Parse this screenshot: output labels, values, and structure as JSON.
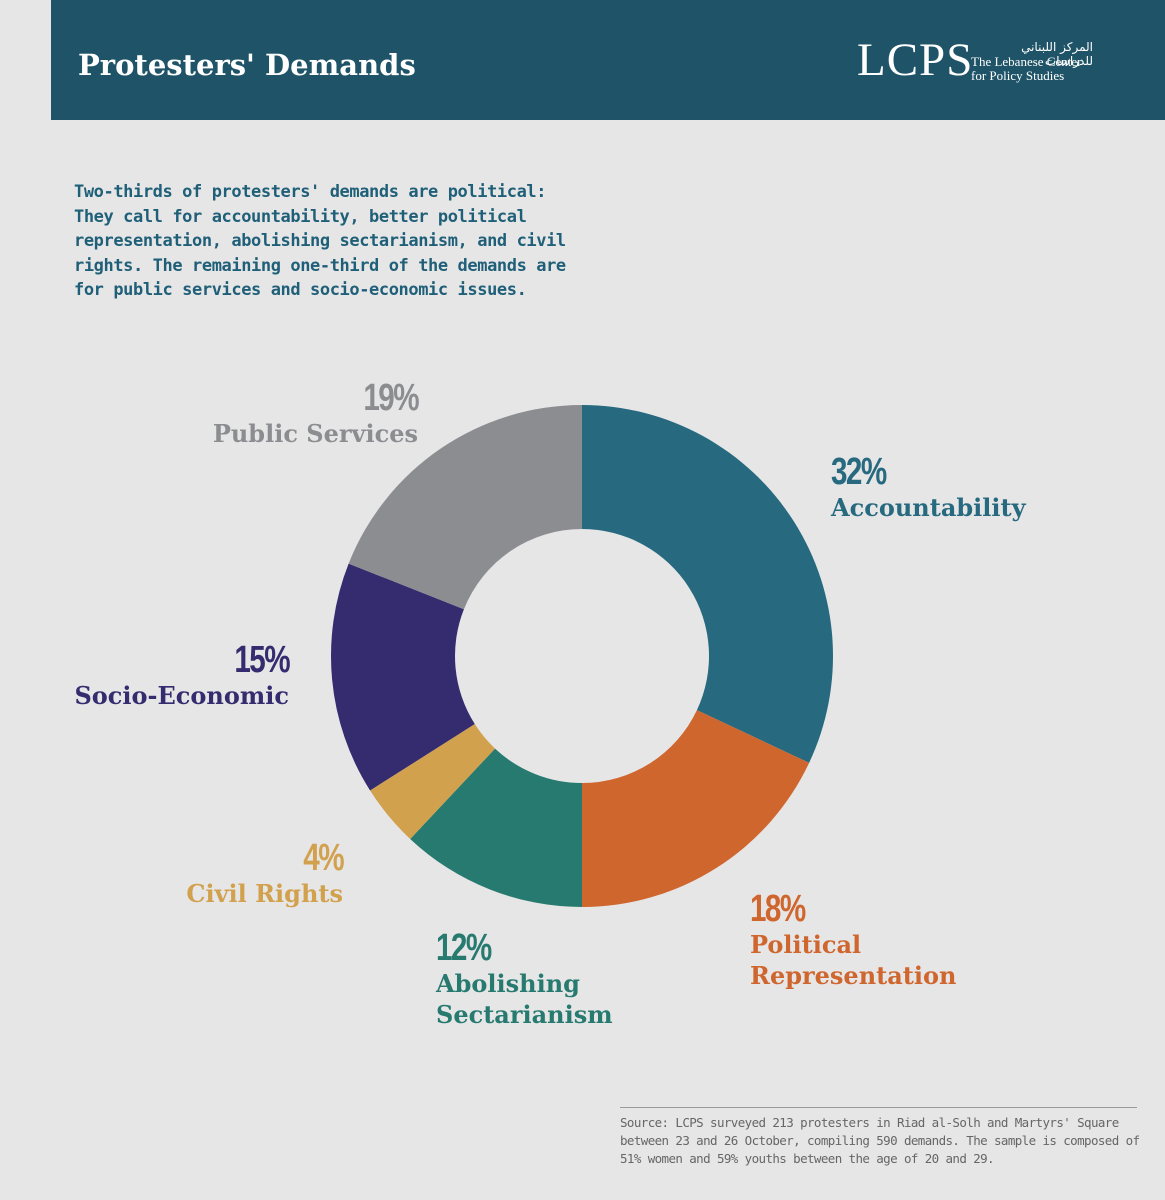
{
  "header": {
    "title": "Protesters' Demands",
    "logo": {
      "mark": "LCPS",
      "arabic": "المركز اللبناني للدراسات",
      "line1": "The Lebanese Center",
      "line2": "for Policy Studies"
    }
  },
  "intro": "Two-thirds of protesters' demands are political: They call for accountability, better political representation, abolishing sectarianism, and civil rights. The remaining one-third of the demands are for public services and socio-economic issues.",
  "chart_data": {
    "type": "pie",
    "title": "Protesters' Demands",
    "units": "%",
    "categories": [
      "Accountability",
      "Political Representation",
      "Abolishing Sectarianism",
      "Civil Rights",
      "Socio-Economic",
      "Public Services"
    ],
    "values": [
      32,
      18,
      12,
      4,
      15,
      19
    ],
    "labels": [
      "32%",
      "18%",
      "12%",
      "4%",
      "15%",
      "19%"
    ],
    "colors": [
      "#27697f",
      "#cf662e",
      "#277a6f",
      "#d2a14e",
      "#352c6f",
      "#8c8d90"
    ]
  },
  "source": "Source: LCPS surveyed 213 protesters in Riad al-Solh and Martyrs' Square between 23 and 26 October, compiling 590 demands. The sample is composed of 51% women and 59% youths between the age of 20 and 29."
}
